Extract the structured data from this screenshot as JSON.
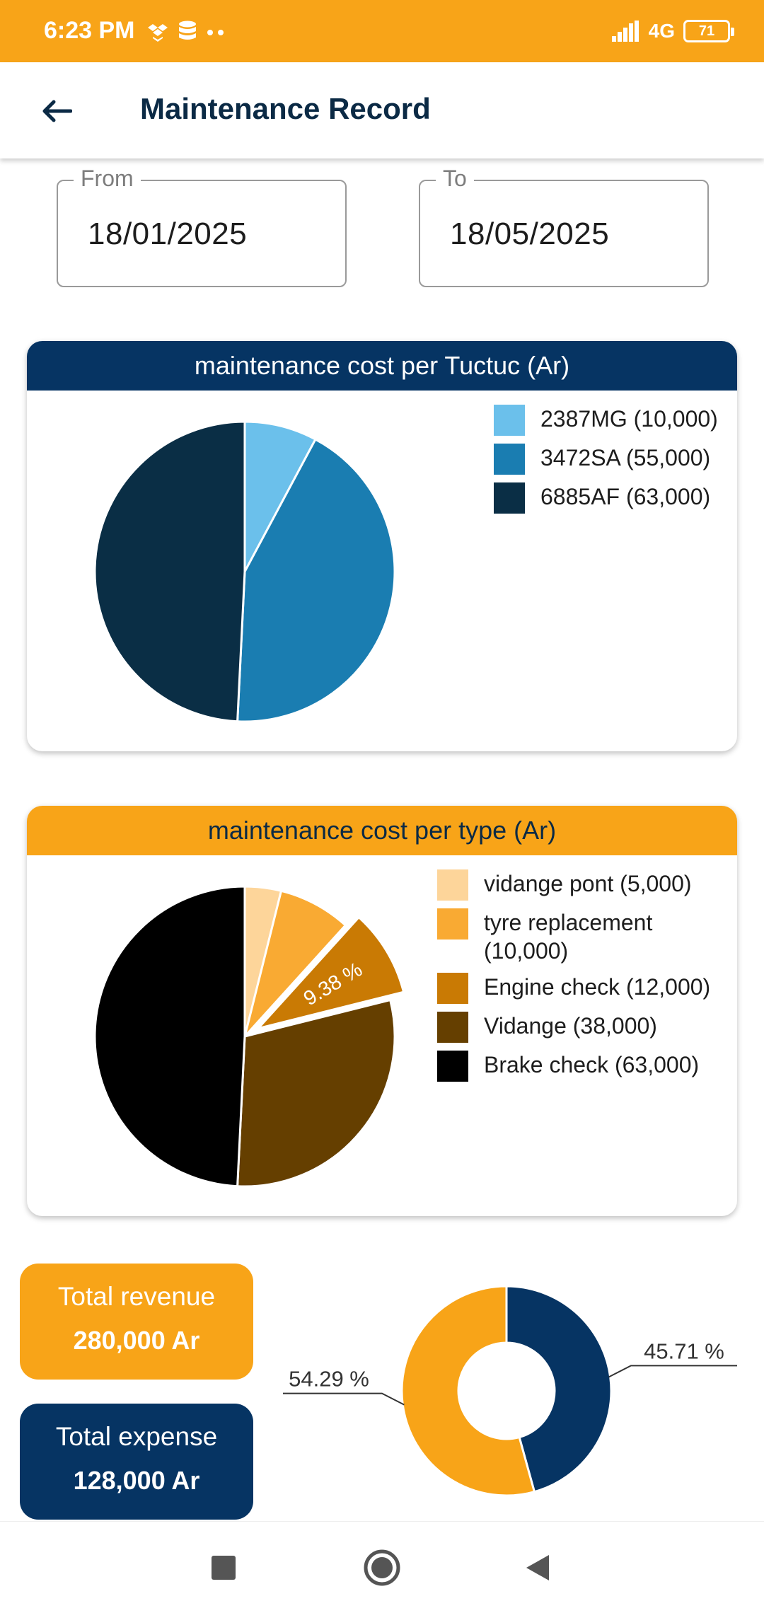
{
  "status_bar": {
    "time": "6:23 PM",
    "network": "4G",
    "battery": "71",
    "icons": [
      "dropbox-icon",
      "database-icon",
      "more-dots-icon",
      "signal-icon",
      "battery-icon"
    ]
  },
  "app_bar": {
    "title": "Maintenance Record",
    "back_icon": "arrow-left-icon"
  },
  "filters": {
    "from_label": "From",
    "from_value": "18/01/2025",
    "to_label": "To",
    "to_value": "18/05/2025"
  },
  "chart_data": [
    {
      "type": "pie",
      "title": "maintenance cost per Tuctuc (Ar)",
      "categories": [
        "2387MG",
        "3472SA",
        "6885AF"
      ],
      "values": [
        10000,
        55000,
        63000
      ],
      "legend_labels": [
        "2387MG (10,000)",
        "3472SA (55,000)",
        "6885AF (63,000)"
      ],
      "colors": [
        "#6BC0EB",
        "#1A7DB1",
        "#0A2E45"
      ],
      "legend_position": "top-right",
      "data_labels": [
        "",
        "",
        ""
      ],
      "explode": [
        0,
        0,
        0
      ]
    },
    {
      "type": "pie",
      "title": "maintenance cost per type (Ar)",
      "categories": [
        "vidange pont",
        "tyre replacement",
        "Engine check",
        "Vidange",
        "Brake check"
      ],
      "values": [
        5000,
        10000,
        12000,
        38000,
        63000
      ],
      "legend_labels": [
        "vidange pont (5,000)",
        "tyre replacement (10,000)",
        "Engine check (12,000)",
        "Vidange (38,000)",
        "Brake check (63,000)"
      ],
      "colors": [
        "#FDD59A",
        "#F9AA33",
        "#C97A04",
        "#653F00",
        "#000000"
      ],
      "legend_position": "top-right",
      "data_labels": [
        "",
        "",
        "9.38 %",
        "",
        ""
      ],
      "explode": [
        0,
        0,
        1,
        0,
        0
      ]
    },
    {
      "type": "pie",
      "subtype": "donut",
      "categories": [
        "Total expense",
        "Total revenue"
      ],
      "values": [
        45.71,
        54.29
      ],
      "data_labels": [
        "45.71 %",
        "54.29 %"
      ],
      "colors": [
        "#063463",
        "#F8A418"
      ]
    }
  ],
  "summary": {
    "revenue_label": "Total revenue",
    "revenue_value": "280,000 Ar",
    "expense_label": "Total expense",
    "expense_value": "128,000 Ar"
  },
  "nav_bar": {
    "icons": [
      "recent-apps-icon",
      "home-icon",
      "back-triangle-icon"
    ]
  }
}
